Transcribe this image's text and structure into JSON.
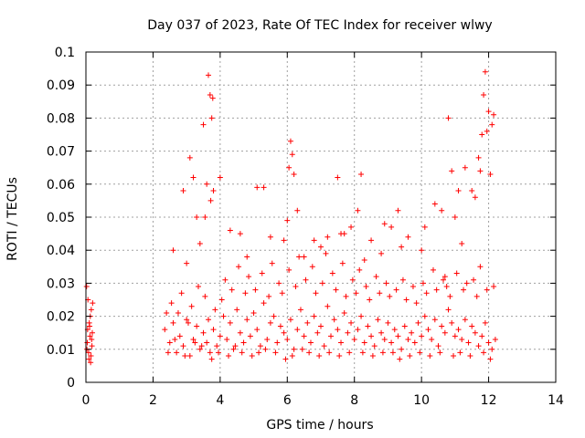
{
  "chart_data": {
    "type": "scatter",
    "title": "Day 037 of 2023, Rate Of TEC Index for receiver wlwy",
    "xlabel": "GPS time / hours",
    "ylabel": "ROTI / TECUs",
    "xlim": [
      0,
      14
    ],
    "ylim": [
      0,
      0.1
    ],
    "grid": true,
    "marker": "+",
    "color": "#ff0000",
    "x_ticks": [
      "0",
      "2",
      "4",
      "6",
      "8",
      "10",
      "12",
      "14"
    ],
    "y_ticks": [
      "0",
      "0.01",
      "0.02",
      "0.03",
      "0.04",
      "0.05",
      "0.06",
      "0.07",
      "0.08",
      "0.09",
      "0.1"
    ],
    "series": [
      {
        "name": "ROTI",
        "x": [
          0.02,
          0.04,
          0.06,
          0.08,
          0.1,
          0.12,
          0.14,
          0.16,
          0.18,
          0.2,
          0.05,
          0.09,
          0.13,
          0.17,
          0.03,
          0.11,
          0.15,
          0.19,
          2.35,
          2.4,
          2.5,
          2.6,
          2.7,
          2.8,
          2.9,
          3.0,
          3.1,
          3.2,
          3.3,
          3.4,
          3.5,
          3.6,
          3.7,
          3.8,
          3.9,
          4.0,
          4.1,
          4.2,
          4.3,
          4.4,
          4.5,
          4.6,
          4.7,
          4.8,
          4.9,
          5.0,
          5.1,
          5.2,
          5.3,
          5.4,
          5.5,
          5.6,
          5.7,
          5.8,
          5.9,
          6.0,
          6.1,
          6.2,
          6.3,
          6.4,
          6.5,
          6.6,
          6.7,
          6.8,
          6.9,
          7.0,
          7.1,
          7.2,
          7.3,
          7.4,
          7.5,
          7.6,
          7.7,
          7.8,
          7.9,
          8.0,
          8.1,
          8.2,
          8.3,
          8.4,
          8.5,
          8.6,
          8.7,
          8.8,
          8.9,
          9.0,
          9.1,
          9.2,
          9.3,
          9.4,
          9.5,
          9.6,
          9.7,
          9.8,
          9.9,
          10.0,
          10.1,
          10.2,
          10.3,
          10.4,
          10.5,
          10.6,
          10.7,
          10.8,
          10.9,
          11.0,
          11.1,
          11.2,
          11.3,
          11.4,
          11.5,
          11.6,
          11.7,
          11.8,
          11.9,
          12.0,
          12.1,
          12.2,
          2.45,
          2.55,
          2.65,
          2.75,
          2.85,
          2.95,
          3.05,
          3.15,
          3.25,
          3.35,
          3.45,
          3.55,
          3.65,
          3.75,
          3.85,
          3.95,
          4.05,
          4.15,
          4.25,
          4.35,
          4.45,
          4.55,
          4.65,
          4.75,
          4.85,
          4.95,
          5.05,
          5.15,
          5.25,
          5.35,
          5.45,
          5.55,
          5.65,
          5.75,
          5.85,
          5.95,
          6.05,
          6.15,
          6.25,
          6.35,
          6.45,
          6.55,
          6.65,
          6.75,
          6.85,
          6.95,
          7.05,
          7.15,
          7.25,
          7.35,
          7.45,
          7.55,
          7.65,
          7.75,
          7.85,
          7.95,
          8.05,
          8.15,
          8.25,
          8.35,
          8.45,
          8.55,
          8.65,
          8.75,
          8.85,
          8.95,
          9.05,
          9.15,
          9.25,
          9.35,
          9.45,
          9.55,
          9.65,
          9.75,
          9.85,
          9.95,
          10.05,
          10.15,
          10.25,
          10.35,
          10.45,
          10.55,
          10.65,
          10.75,
          10.85,
          10.95,
          11.05,
          11.15,
          11.25,
          11.35,
          11.45,
          11.55,
          11.65,
          11.75,
          11.85,
          11.95,
          12.05,
          12.15,
          2.6,
          2.9,
          3.1,
          3.3,
          3.4,
          3.5,
          3.65,
          3.7,
          3.75,
          3.8,
          4.3,
          4.6,
          5.1,
          5.5,
          5.9,
          6.05,
          6.1,
          6.2,
          6.3,
          6.8,
          7.2,
          7.5,
          7.6,
          7.9,
          8.1,
          8.2,
          8.5,
          8.9,
          9.1,
          9.3,
          9.6,
          10.1,
          10.6,
          10.8,
          10.9,
          11.1,
          11.3,
          11.5,
          11.7,
          11.8,
          11.85,
          11.9,
          12.0,
          12.05,
          12.1,
          3.0,
          3.2,
          3.55,
          3.6,
          3.72,
          3.78,
          4.0,
          4.8,
          5.3,
          6.0,
          6.15,
          6.5,
          7.0,
          7.7,
          8.3,
          8.8,
          9.4,
          10.0,
          10.4,
          10.7,
          11.0,
          11.2,
          11.6,
          11.75,
          11.95,
          12.15
        ],
        "y": [
          0.029,
          0.012,
          0.025,
          0.009,
          0.018,
          0.014,
          0.006,
          0.022,
          0.011,
          0.024,
          0.016,
          0.007,
          0.02,
          0.013,
          0.01,
          0.017,
          0.008,
          0.015,
          0.016,
          0.021,
          0.012,
          0.018,
          0.009,
          0.014,
          0.011,
          0.019,
          0.008,
          0.013,
          0.017,
          0.01,
          0.015,
          0.012,
          0.009,
          0.016,
          0.011,
          0.014,
          0.02,
          0.013,
          0.018,
          0.01,
          0.022,
          0.015,
          0.012,
          0.019,
          0.014,
          0.021,
          0.016,
          0.011,
          0.024,
          0.013,
          0.018,
          0.02,
          0.012,
          0.017,
          0.015,
          0.013,
          0.019,
          0.01,
          0.016,
          0.022,
          0.014,
          0.018,
          0.012,
          0.02,
          0.015,
          0.017,
          0.011,
          0.023,
          0.014,
          0.019,
          0.016,
          0.012,
          0.021,
          0.015,
          0.018,
          0.013,
          0.016,
          0.02,
          0.012,
          0.017,
          0.014,
          0.011,
          0.019,
          0.015,
          0.013,
          0.018,
          0.012,
          0.016,
          0.014,
          0.01,
          0.017,
          0.013,
          0.015,
          0.012,
          0.018,
          0.014,
          0.02,
          0.016,
          0.013,
          0.019,
          0.011,
          0.017,
          0.015,
          0.022,
          0.018,
          0.014,
          0.016,
          0.013,
          0.019,
          0.012,
          0.017,
          0.015,
          0.011,
          0.014,
          0.018,
          0.012,
          0.01,
          0.013,
          0.009,
          0.024,
          0.013,
          0.021,
          0.027,
          0.008,
          0.018,
          0.023,
          0.012,
          0.029,
          0.011,
          0.026,
          0.019,
          0.007,
          0.022,
          0.009,
          0.025,
          0.031,
          0.008,
          0.028,
          0.011,
          0.035,
          0.009,
          0.027,
          0.032,
          0.008,
          0.028,
          0.009,
          0.033,
          0.01,
          0.026,
          0.036,
          0.009,
          0.03,
          0.027,
          0.007,
          0.034,
          0.008,
          0.029,
          0.038,
          0.01,
          0.031,
          0.009,
          0.035,
          0.027,
          0.008,
          0.03,
          0.039,
          0.009,
          0.033,
          0.028,
          0.008,
          0.036,
          0.026,
          0.009,
          0.031,
          0.027,
          0.034,
          0.009,
          0.029,
          0.025,
          0.008,
          0.032,
          0.027,
          0.009,
          0.03,
          0.026,
          0.009,
          0.028,
          0.007,
          0.031,
          0.025,
          0.008,
          0.029,
          0.024,
          0.009,
          0.03,
          0.027,
          0.008,
          0.034,
          0.028,
          0.009,
          0.031,
          0.029,
          0.026,
          0.008,
          0.033,
          0.009,
          0.028,
          0.03,
          0.008,
          0.031,
          0.026,
          0.035,
          0.009,
          0.028,
          0.007,
          0.029,
          0.04,
          0.058,
          0.068,
          0.05,
          0.042,
          0.078,
          0.093,
          0.087,
          0.08,
          0.058,
          0.046,
          0.045,
          0.059,
          0.044,
          0.043,
          0.065,
          0.073,
          0.063,
          0.052,
          0.043,
          0.044,
          0.062,
          0.045,
          0.047,
          0.052,
          0.063,
          0.043,
          0.048,
          0.047,
          0.052,
          0.044,
          0.047,
          0.052,
          0.08,
          0.064,
          0.058,
          0.065,
          0.058,
          0.068,
          0.075,
          0.087,
          0.094,
          0.082,
          0.063,
          0.078,
          0.036,
          0.062,
          0.05,
          0.06,
          0.055,
          0.086,
          0.062,
          0.038,
          0.059,
          0.049,
          0.069,
          0.038,
          0.041,
          0.045,
          0.037,
          0.039,
          0.041,
          0.04,
          0.054,
          0.032,
          0.05,
          0.042,
          0.056,
          0.064,
          0.076,
          0.081
        ]
      }
    ]
  }
}
